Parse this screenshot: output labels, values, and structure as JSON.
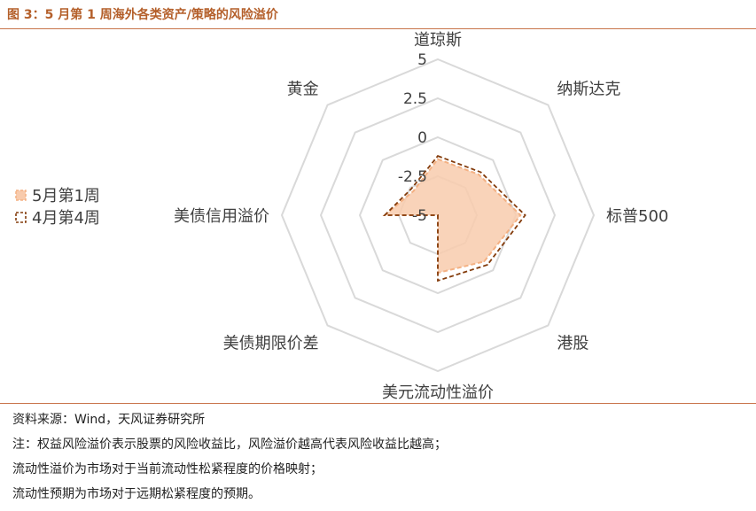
{
  "header": {
    "title": "图 3：5 月第 1 周海外各类资产/策略的风险溢价"
  },
  "chart_data": {
    "type": "radar",
    "categories": [
      "道琼斯",
      "纳斯达克",
      "标普500",
      "港股",
      "美元流动性溢价",
      "美债期限价差",
      "美债信用溢价",
      "黄金"
    ],
    "tick_labels": [
      "-5",
      "-2.5",
      "0",
      "2.5",
      "5"
    ],
    "rlim": [
      -5,
      5
    ],
    "grid": true,
    "legend_position": "left",
    "series": [
      {
        "name": "5月第1周",
        "values": [
          -1.4,
          -1.3,
          0.3,
          -0.8,
          -1.3,
          -5.0,
          -1.6,
          -2.8
        ],
        "style": "filled",
        "color": "#f4b183",
        "fill": "#f8cbad"
      },
      {
        "name": "4月第4周",
        "values": [
          -1.2,
          -1.1,
          0.6,
          -0.5,
          -0.8,
          -5.0,
          -1.6,
          -2.6
        ],
        "style": "dashed",
        "color": "#843c0c"
      }
    ]
  },
  "footer": {
    "source": "资料来源：Wind，天风证券研究所",
    "notes": [
      "注：权益风险溢价表示股票的风险收益比，风险溢价越高代表风险收益比越高；",
      "流动性溢价为市场对于当前流动性松紧程度的价格映射；",
      "流动性预期为市场对于远期松紧程度的预期。"
    ]
  }
}
